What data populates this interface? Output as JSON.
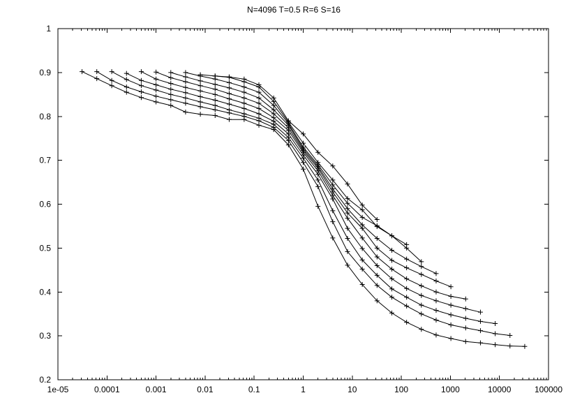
{
  "chart_data": {
    "type": "line",
    "title": "N=4096 T=0.5 R=6 S=16",
    "xlabel": "",
    "ylabel": "",
    "xscale": "log",
    "xlim": [
      1e-05,
      100000
    ],
    "ylim": [
      0.2,
      1
    ],
    "grid": false,
    "legend": "none",
    "marker": "plus",
    "xtick_labels": [
      "1e-05",
      "0.0001",
      "0.001",
      "0.01",
      "0.1",
      "1",
      "10",
      "100",
      "1000",
      "10000",
      "100000"
    ],
    "ytick_labels": [
      "0.2",
      "0.3",
      "0.4",
      "0.5",
      "0.6",
      "0.7",
      "0.8",
      "0.9",
      "1"
    ],
    "series": [
      {
        "x": [
          3.1e-05,
          6.2e-05,
          0.000125,
          0.00025,
          0.0005,
          0.001,
          0.002,
          0.004,
          0.008,
          0.016,
          0.031,
          0.0625,
          0.125,
          0.25,
          0.5,
          1,
          2,
          4,
          8,
          16,
          32,
          64,
          128,
          256,
          512,
          1024,
          2048,
          4096,
          8192,
          16384,
          32768
        ],
        "y": [
          0.902,
          0.886,
          0.87,
          0.855,
          0.843,
          0.833,
          0.825,
          0.81,
          0.805,
          0.802,
          0.793,
          0.793,
          0.78,
          0.77,
          0.735,
          0.68,
          0.595,
          0.523,
          0.461,
          0.417,
          0.38,
          0.352,
          0.331,
          0.315,
          0.302,
          0.294,
          0.287,
          0.284,
          0.28,
          0.277,
          0.276
        ]
      },
      {
        "x": [
          6.2e-05,
          0.000125,
          0.00025,
          0.0005,
          0.001,
          0.002,
          0.004,
          0.008,
          0.016,
          0.031,
          0.0625,
          0.125,
          0.25,
          0.5,
          1,
          2,
          4,
          8,
          16,
          32,
          64,
          128,
          256,
          512,
          1024,
          2048,
          4096,
          8192,
          16384
        ],
        "y": [
          0.902,
          0.882,
          0.867,
          0.856,
          0.846,
          0.838,
          0.83,
          0.822,
          0.815,
          0.808,
          0.8,
          0.79,
          0.775,
          0.745,
          0.695,
          0.64,
          0.56,
          0.492,
          0.452,
          0.415,
          0.388,
          0.368,
          0.35,
          0.336,
          0.325,
          0.318,
          0.312,
          0.305,
          0.301
        ]
      },
      {
        "x": [
          0.000125,
          0.00025,
          0.0005,
          0.001,
          0.002,
          0.004,
          0.008,
          0.016,
          0.031,
          0.0625,
          0.125,
          0.25,
          0.5,
          1,
          2,
          4,
          8,
          16,
          32,
          64,
          128,
          256,
          512,
          1024,
          2048,
          4096,
          8192
        ],
        "y": [
          0.902,
          0.884,
          0.87,
          0.86,
          0.85,
          0.842,
          0.833,
          0.825,
          0.815,
          0.806,
          0.796,
          0.782,
          0.752,
          0.705,
          0.655,
          0.585,
          0.522,
          0.473,
          0.438,
          0.407,
          0.388,
          0.37,
          0.358,
          0.348,
          0.34,
          0.333,
          0.328
        ]
      },
      {
        "x": [
          0.00025,
          0.0005,
          0.001,
          0.002,
          0.004,
          0.008,
          0.016,
          0.031,
          0.0625,
          0.125,
          0.25,
          0.5,
          1,
          2,
          4,
          8,
          16,
          32,
          64,
          128,
          256,
          512,
          1024,
          2048,
          4096
        ],
        "y": [
          0.898,
          0.882,
          0.872,
          0.862,
          0.854,
          0.845,
          0.837,
          0.828,
          0.818,
          0.806,
          0.789,
          0.76,
          0.712,
          0.668,
          0.612,
          0.545,
          0.499,
          0.46,
          0.43,
          0.408,
          0.392,
          0.38,
          0.37,
          0.362,
          0.354
        ]
      },
      {
        "x": [
          0.0005,
          0.001,
          0.002,
          0.004,
          0.008,
          0.016,
          0.031,
          0.0625,
          0.125,
          0.25,
          0.5,
          1,
          2,
          4,
          8,
          16,
          32,
          64,
          128,
          256,
          512,
          1024,
          2048
        ],
        "y": [
          0.902,
          0.885,
          0.875,
          0.866,
          0.858,
          0.85,
          0.84,
          0.83,
          0.818,
          0.797,
          0.768,
          0.718,
          0.676,
          0.62,
          0.568,
          0.523,
          0.48,
          0.452,
          0.43,
          0.414,
          0.4,
          0.39,
          0.384
        ]
      },
      {
        "x": [
          0.001,
          0.002,
          0.004,
          0.008,
          0.016,
          0.031,
          0.0625,
          0.125,
          0.25,
          0.5,
          1,
          2,
          4,
          8,
          16,
          32,
          64,
          128,
          256,
          512,
          1024
        ],
        "y": [
          0.901,
          0.888,
          0.879,
          0.87,
          0.862,
          0.852,
          0.842,
          0.83,
          0.806,
          0.774,
          0.722,
          0.682,
          0.628,
          0.58,
          0.545,
          0.5,
          0.472,
          0.455,
          0.44,
          0.425,
          0.412
        ]
      },
      {
        "x": [
          0.002,
          0.004,
          0.008,
          0.016,
          0.031,
          0.0625,
          0.125,
          0.25,
          0.5,
          1,
          2,
          4,
          8,
          16,
          32,
          64,
          128,
          256,
          512
        ],
        "y": [
          0.9,
          0.89,
          0.881,
          0.873,
          0.865,
          0.855,
          0.842,
          0.815,
          0.78,
          0.726,
          0.686,
          0.635,
          0.59,
          0.553,
          0.522,
          0.495,
          0.475,
          0.458,
          0.442
        ]
      },
      {
        "x": [
          0.004,
          0.008,
          0.016,
          0.031,
          0.0625,
          0.125,
          0.25,
          0.5,
          1,
          2,
          4,
          8,
          16,
          32,
          64,
          128,
          256
        ],
        "y": [
          0.9,
          0.892,
          0.885,
          0.877,
          0.867,
          0.855,
          0.825,
          0.784,
          0.73,
          0.69,
          0.644,
          0.602,
          0.57,
          0.551,
          0.528,
          0.5,
          0.469
        ]
      },
      {
        "x": [
          0.008,
          0.016,
          0.031,
          0.0625,
          0.125,
          0.25,
          0.5,
          1,
          2,
          4,
          8,
          16,
          32,
          64,
          128
        ],
        "y": [
          0.895,
          0.892,
          0.889,
          0.879,
          0.867,
          0.834,
          0.787,
          0.739,
          0.695,
          0.655,
          0.613,
          0.587,
          0.549,
          0.528,
          0.508
        ]
      },
      {
        "x": [
          0.016,
          0.031,
          0.0625,
          0.125,
          0.25,
          0.5,
          1,
          2,
          4,
          8,
          16,
          32
        ],
        "y": [
          0.892,
          0.89,
          0.885,
          0.872,
          0.842,
          0.79,
          0.76,
          0.718,
          0.687,
          0.646,
          0.598,
          0.565
        ]
      }
    ]
  }
}
